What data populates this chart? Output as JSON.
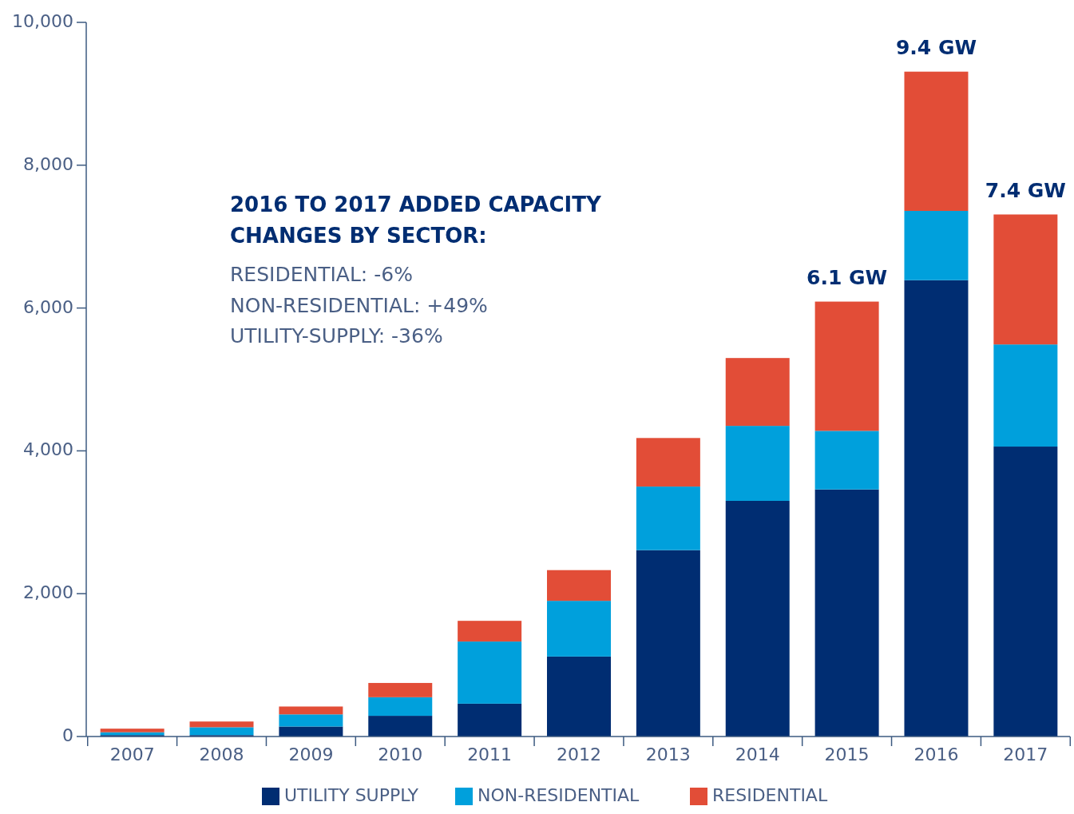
{
  "chart_data": {
    "type": "bar",
    "stacked": true,
    "categories": [
      "2007",
      "2008",
      "2009",
      "2010",
      "2011",
      "2012",
      "2013",
      "2014",
      "2015",
      "2016",
      "2017"
    ],
    "series": [
      {
        "name": "UTILITY SUPPLY",
        "color": "#002d72",
        "values": [
          20,
          20,
          140,
          290,
          460,
          1120,
          2610,
          3300,
          3460,
          6390,
          4060
        ]
      },
      {
        "name": "NON-RESIDENTIAL",
        "color": "#00a0dc",
        "values": [
          40,
          110,
          170,
          260,
          870,
          780,
          890,
          1050,
          820,
          970,
          1430
        ]
      },
      {
        "name": "RESIDENTIAL",
        "color": "#e24d37",
        "values": [
          50,
          80,
          110,
          200,
          290,
          430,
          680,
          950,
          1810,
          1950,
          1820
        ]
      }
    ],
    "ylim": [
      0,
      10000
    ],
    "yticks": [
      0,
      {
        "value": 2000,
        "label": "2,000"
      },
      {
        "value": 4000,
        "label": "4,000"
      },
      {
        "value": 6000,
        "label": "6,000"
      },
      {
        "value": 8000,
        "label": "8,000"
      },
      {
        "value": 10000,
        "label": "10,000"
      }
    ],
    "grid": false,
    "legend": "bottom",
    "annotations": [
      "2016 TO 2017 ADDED CAPACITY CHANGES BY SECTOR:",
      "RESIDENTIAL: -6%",
      "NON-RESIDENTIAL: +49%",
      "UTILITY-SUPPLY: -36%",
      {
        "text": "6.1 GW",
        "x": "2015",
        "y": 6085
      },
      {
        "text": "9.4 GW",
        "x": "2016",
        "y": 9310
      },
      {
        "text": "7.4 GW",
        "x": "2017",
        "y": 7305
      }
    ]
  }
}
